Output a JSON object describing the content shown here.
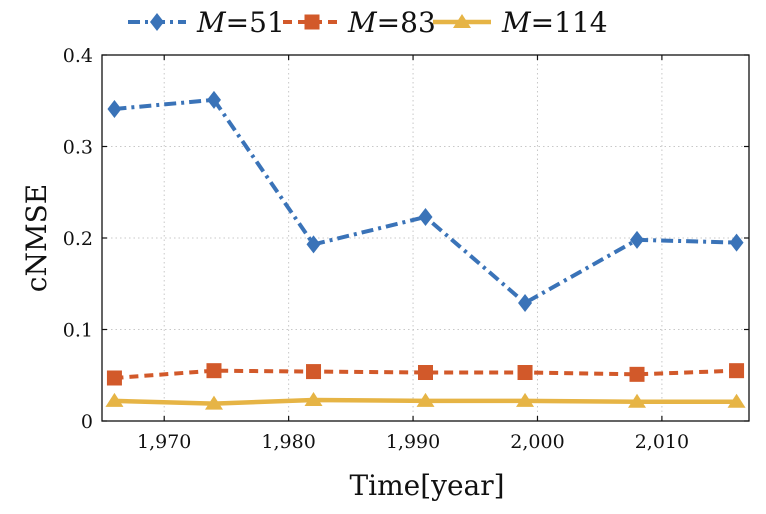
{
  "chart_data": {
    "type": "line",
    "title": "",
    "xlabel": "Time[year]",
    "ylabel": "cNMSE",
    "xlim": [
      1965,
      2017
    ],
    "ylim": [
      0,
      0.4
    ],
    "xticks": [
      1970,
      1980,
      1990,
      2000,
      2010
    ],
    "xtick_labels": [
      "1,970",
      "1,980",
      "1,990",
      "2,000",
      "2,010"
    ],
    "yticks": [
      0,
      0.1,
      0.2,
      0.3,
      0.4
    ],
    "ytick_labels": [
      "0",
      "0.1",
      "0.2",
      "0.3",
      "0.4"
    ],
    "grid": true,
    "legend_position": "top",
    "x": [
      1966,
      1974,
      1982,
      1991,
      1999,
      2008,
      2016
    ],
    "series": [
      {
        "name": "M=51",
        "legend_var": "M",
        "legend_val": "=51",
        "color": "#3a73b8",
        "marker": "diamond",
        "line_style": "dashdot",
        "values": [
          0.341,
          0.351,
          0.193,
          0.223,
          0.129,
          0.198,
          0.195
        ]
      },
      {
        "name": "M=83",
        "legend_var": "M",
        "legend_val": "=83",
        "color": "#d2592a",
        "marker": "square",
        "line_style": "dashed",
        "values": [
          0.047,
          0.055,
          0.054,
          0.053,
          0.053,
          0.051,
          0.055
        ]
      },
      {
        "name": "M=114",
        "legend_var": "M",
        "legend_val": "=114",
        "color": "#e6b445",
        "marker": "triangle",
        "line_style": "solid",
        "values": [
          0.022,
          0.019,
          0.023,
          0.022,
          0.022,
          0.021,
          0.021
        ]
      }
    ]
  }
}
